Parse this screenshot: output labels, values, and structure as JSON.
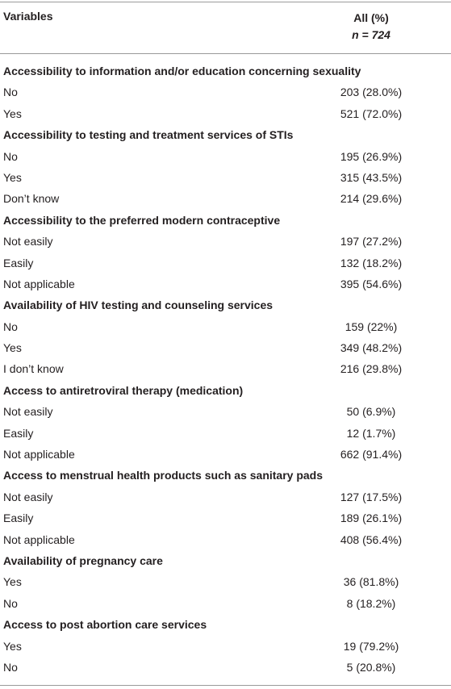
{
  "header": {
    "variables_label": "Variables",
    "all_label": "All (%)",
    "n_label": "n = 724"
  },
  "sections": [
    {
      "title": "Accessibility to information and/or education concerning sexuality",
      "rows": [
        {
          "label": "No",
          "value": "203 (28.0%)"
        },
        {
          "label": "Yes",
          "value": "521 (72.0%)"
        }
      ]
    },
    {
      "title": "Accessibility to testing and treatment services of STIs",
      "rows": [
        {
          "label": "No",
          "value": "195 (26.9%)"
        },
        {
          "label": "Yes",
          "value": "315 (43.5%)"
        },
        {
          "label": "Don’t know",
          "value": "214 (29.6%)"
        }
      ]
    },
    {
      "title": "Accessibility to the preferred modern contraceptive",
      "rows": [
        {
          "label": "Not easily",
          "value": "197 (27.2%)"
        },
        {
          "label": "Easily",
          "value": "132 (18.2%)"
        },
        {
          "label": "Not applicable",
          "value": "395 (54.6%)"
        }
      ]
    },
    {
      "title": "Availability of HIV testing and counseling services",
      "rows": [
        {
          "label": "No",
          "value": "159 (22%)"
        },
        {
          "label": "Yes",
          "value": "349 (48.2%)"
        },
        {
          "label": "I don’t know",
          "value": "216 (29.8%)"
        }
      ]
    },
    {
      "title": "Access to antiretroviral therapy (medication)",
      "rows": [
        {
          "label": "Not easily",
          "value": "50 (6.9%)"
        },
        {
          "label": "Easily",
          "value": "12 (1.7%)"
        },
        {
          "label": "Not applicable",
          "value": "662 (91.4%)"
        }
      ]
    },
    {
      "title": "Access to menstrual health products such as sanitary pads",
      "rows": [
        {
          "label": "Not easily",
          "value": "127 (17.5%)"
        },
        {
          "label": "Easily",
          "value": "189 (26.1%)"
        },
        {
          "label": "Not applicable",
          "value": "408 (56.4%)"
        }
      ]
    },
    {
      "title": "Availability of pregnancy care",
      "rows": [
        {
          "label": "Yes",
          "value": "36 (81.8%)"
        },
        {
          "label": "No",
          "value": "8 (18.2%)"
        }
      ]
    },
    {
      "title": "Access to post abortion care services",
      "rows": [
        {
          "label": "Yes",
          "value": "19 (79.2%)"
        },
        {
          "label": "No",
          "value": "5 (20.8%)"
        }
      ]
    }
  ]
}
